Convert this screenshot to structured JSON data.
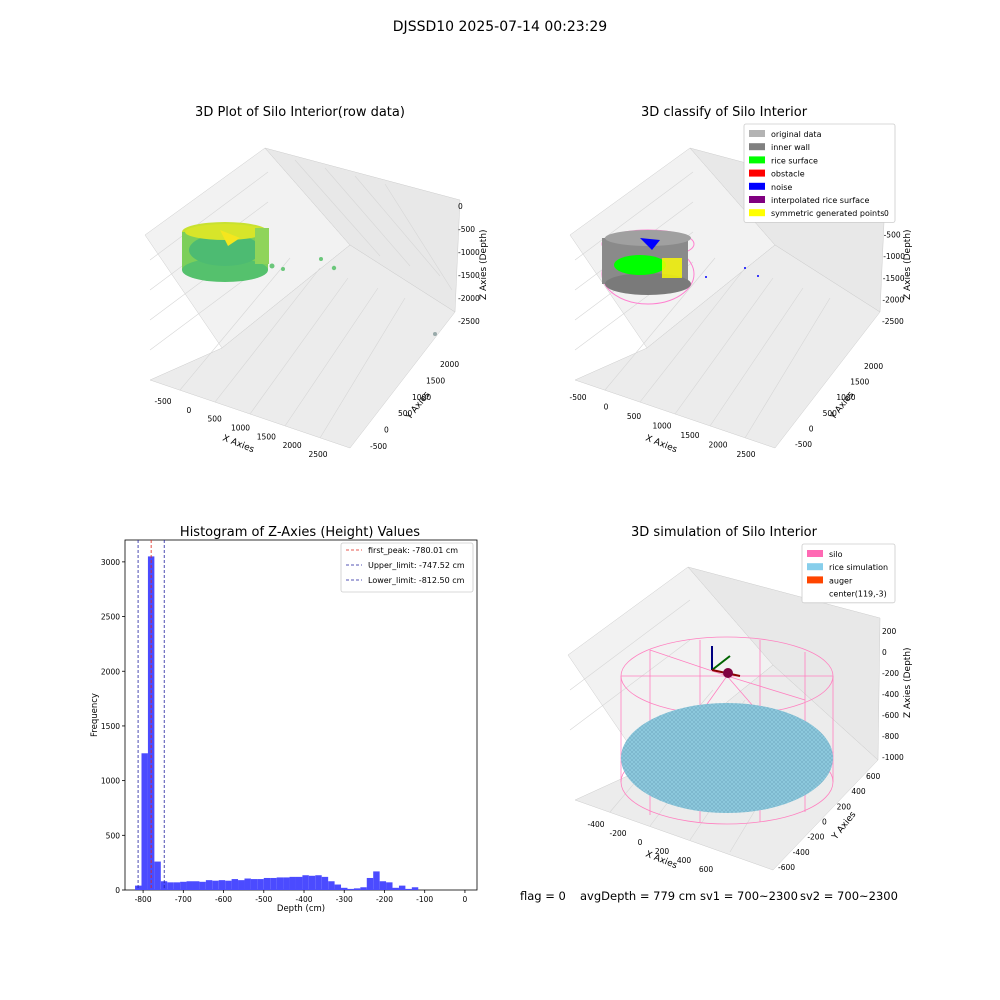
{
  "figure": {
    "suptitle": "DJSSD10 2025-07-14 00:23:29",
    "status": {
      "flag": "flag = 0",
      "avg_depth": "avgDepth = 779 cm",
      "sv1": "sv1 = 700~2300",
      "sv2": "sv2 = 700~2300"
    }
  },
  "chart_data": [
    {
      "id": "raw",
      "type": "scatter",
      "title": "3D Plot of Silo Interior(row data)",
      "xlabel": "X Axies",
      "ylabel": "Y Axies",
      "zlabel": "Z Axies (Depth)",
      "x_ticks": [
        "-500",
        "0",
        "500",
        "1000",
        "1500",
        "2000",
        "2500"
      ],
      "y_ticks": [
        "-500",
        "0",
        "500",
        "1000",
        "1500",
        "2000"
      ],
      "z_ticks": [
        "0",
        "-500",
        "-1000",
        "-1500",
        "-2000",
        "-2500"
      ],
      "colormap": [
        "#2ca25f",
        "#7ad151",
        "#fde725"
      ]
    },
    {
      "id": "classify",
      "type": "scatter",
      "title": "3D classify of Silo Interior",
      "xlabel": "X Axies",
      "ylabel": "Y Axies",
      "zlabel": "Z Axies (Depth)",
      "x_ticks": [
        "-500",
        "0",
        "500",
        "1000",
        "1500",
        "2000",
        "2500"
      ],
      "y_ticks": [
        "-500",
        "0",
        "500",
        "1000",
        "1500",
        "2000"
      ],
      "z_ticks": [
        "0",
        "-500",
        "-1000",
        "-1500",
        "-2000",
        "-2500"
      ],
      "legend": [
        {
          "label": "original data",
          "color": "#b3b3b3"
        },
        {
          "label": "inner wall",
          "color": "#808080"
        },
        {
          "label": "rice surface",
          "color": "#00ff00"
        },
        {
          "label": "obstacle",
          "color": "#ff0000"
        },
        {
          "label": "noise",
          "color": "#0000ff"
        },
        {
          "label": "interpolated rice surface",
          "color": "#800080"
        },
        {
          "label": "symmetric generated points",
          "color": "#ffff00"
        }
      ]
    },
    {
      "id": "hist",
      "type": "bar",
      "title": "Histogram of Z-Axies (Height) Values",
      "xlabel": "Depth (cm)",
      "ylabel": "Frequency",
      "xlim": [
        -845,
        30
      ],
      "ylim": [
        0,
        3200
      ],
      "x_ticks": [
        -800,
        -700,
        -600,
        -500,
        -400,
        -300,
        -200,
        -100,
        0
      ],
      "y_ticks": [
        0,
        500,
        1000,
        1500,
        2000,
        2500,
        3000
      ],
      "bin_width": 16,
      "bin_start": -820,
      "values": [
        40,
        1250,
        3050,
        260,
        80,
        70,
        70,
        75,
        80,
        80,
        75,
        90,
        85,
        90,
        85,
        100,
        90,
        105,
        100,
        100,
        110,
        110,
        115,
        115,
        120,
        120,
        135,
        130,
        135,
        120,
        80,
        50,
        20,
        10,
        15,
        25,
        110,
        170,
        80,
        70,
        20,
        40,
        10,
        25
      ],
      "bar_color": "#4b4bff",
      "vlines": [
        {
          "x": -780.01,
          "color": "#e0241a",
          "label": "first_peak: -780.01 cm"
        },
        {
          "x": -747.52,
          "color": "#1f1f9f",
          "label": "Upper_limit: -747.52 cm"
        },
        {
          "x": -812.5,
          "color": "#1f1f9f",
          "label": "Lower_limit: -812.50 cm"
        }
      ],
      "legend_loc": "upper right"
    },
    {
      "id": "sim",
      "type": "scatter",
      "title": "3D simulation of Silo Interior",
      "xlabel": "X Axies",
      "ylabel": "Y Axies",
      "zlabel": "Z Axies (Depth)",
      "x_ticks": [
        "-400",
        "-200",
        "0",
        "200",
        "400",
        "600"
      ],
      "y_ticks": [
        "-600",
        "-400",
        "-200",
        "0",
        "200",
        "400",
        "600"
      ],
      "z_ticks": [
        "200",
        "0",
        "-200",
        "-400",
        "-600",
        "-800",
        "-1000"
      ],
      "legend": [
        {
          "label": "silo",
          "color": "#ff69b4"
        },
        {
          "label": "rice simulation",
          "color": "#87ceeb"
        },
        {
          "label": "auger",
          "color": "#ff4500"
        },
        {
          "label": "center(119,-3)",
          "color": "#ffffff"
        }
      ],
      "center": [
        119,
        -3
      ]
    }
  ]
}
